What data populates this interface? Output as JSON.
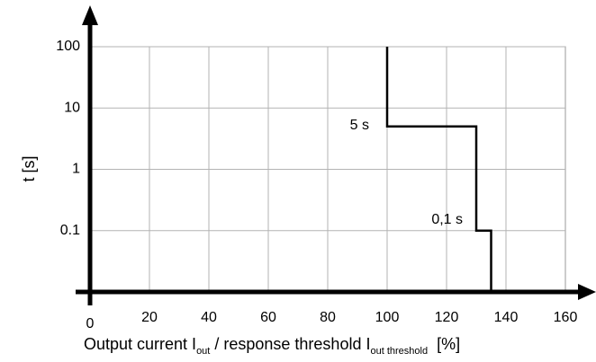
{
  "chart_data": {
    "type": "line",
    "ylabel": "t [s]",
    "xlabel": {
      "pre": "Output current I",
      "sub1": "out",
      "mid": " / response threshold I",
      "sub2": "out threshold",
      "post": "  [%]"
    },
    "x_ticks": [
      0,
      20,
      40,
      60,
      80,
      100,
      120,
      140,
      160
    ],
    "y_ticks": [
      "100",
      "10",
      "1",
      "0.1"
    ],
    "y_scale": "log",
    "xlim": [
      0,
      160
    ],
    "ylim": [
      0.01,
      100
    ],
    "grid": true,
    "series": [
      {
        "x": [
          100,
          100,
          130,
          130,
          135,
          135
        ],
        "y": [
          100,
          5,
          5,
          0.1,
          0.1,
          0.01
        ]
      }
    ],
    "annotations": [
      {
        "text": "5 s",
        "x": 100,
        "y": 5
      },
      {
        "text": "0,1 s",
        "x": 130,
        "y": 0.1
      }
    ]
  }
}
